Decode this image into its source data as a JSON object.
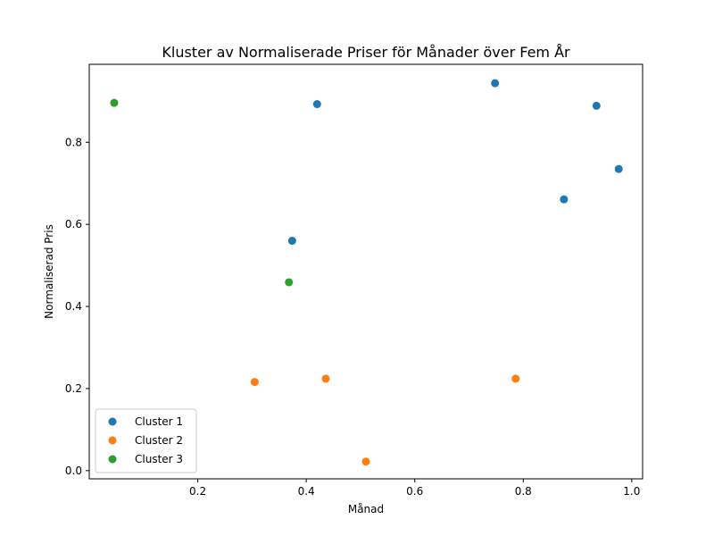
{
  "chart_data": {
    "type": "scatter",
    "title": "Kluster av Normaliserade Priser för Månader över Fem År",
    "xlabel": "Månad",
    "ylabel": "Normaliserad Pris",
    "xlim": [
      0.0,
      1.02
    ],
    "ylim": [
      -0.02,
      0.99
    ],
    "xticks": [
      "0.2",
      "0.4",
      "0.6",
      "0.8",
      "1.0"
    ],
    "yticks": [
      "0.0",
      "0.2",
      "0.4",
      "0.6",
      "0.8"
    ],
    "grid": false,
    "legend_position": "lower-left",
    "series": [
      {
        "name": "Cluster 1",
        "color": "#1f77b4",
        "points": [
          [
            0.42,
            0.893
          ],
          [
            0.374,
            0.56
          ],
          [
            0.748,
            0.944
          ],
          [
            0.935,
            0.889
          ],
          [
            0.875,
            0.661
          ],
          [
            0.976,
            0.735
          ]
        ]
      },
      {
        "name": "Cluster 2",
        "color": "#ff7f0e",
        "points": [
          [
            0.305,
            0.216
          ],
          [
            0.436,
            0.224
          ],
          [
            0.51,
            0.022
          ],
          [
            0.786,
            0.224
          ]
        ]
      },
      {
        "name": "Cluster 3",
        "color": "#2ca02c",
        "points": [
          [
            0.046,
            0.896
          ],
          [
            0.368,
            0.459
          ]
        ]
      }
    ]
  }
}
